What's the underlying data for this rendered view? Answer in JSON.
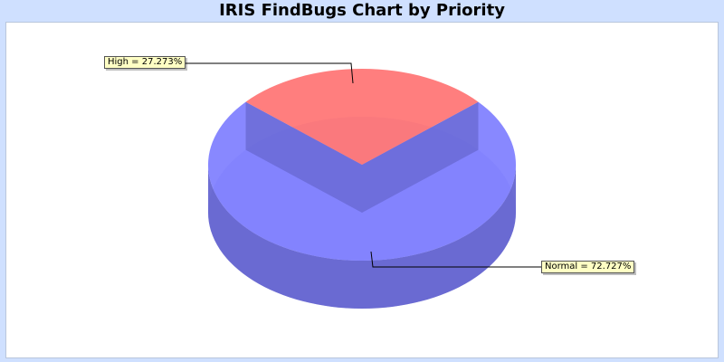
{
  "chart_data": {
    "type": "pie",
    "title": "IRIS FindBugs Chart by Priority",
    "slices": [
      {
        "label": "High",
        "value": 27.273,
        "display": "High = 27.273%",
        "color": "#ff7070"
      },
      {
        "label": "Normal",
        "value": 72.727,
        "display": "Normal = 72.727%",
        "color": "#7b7bff"
      }
    ],
    "three_d": true,
    "legend": "none"
  }
}
